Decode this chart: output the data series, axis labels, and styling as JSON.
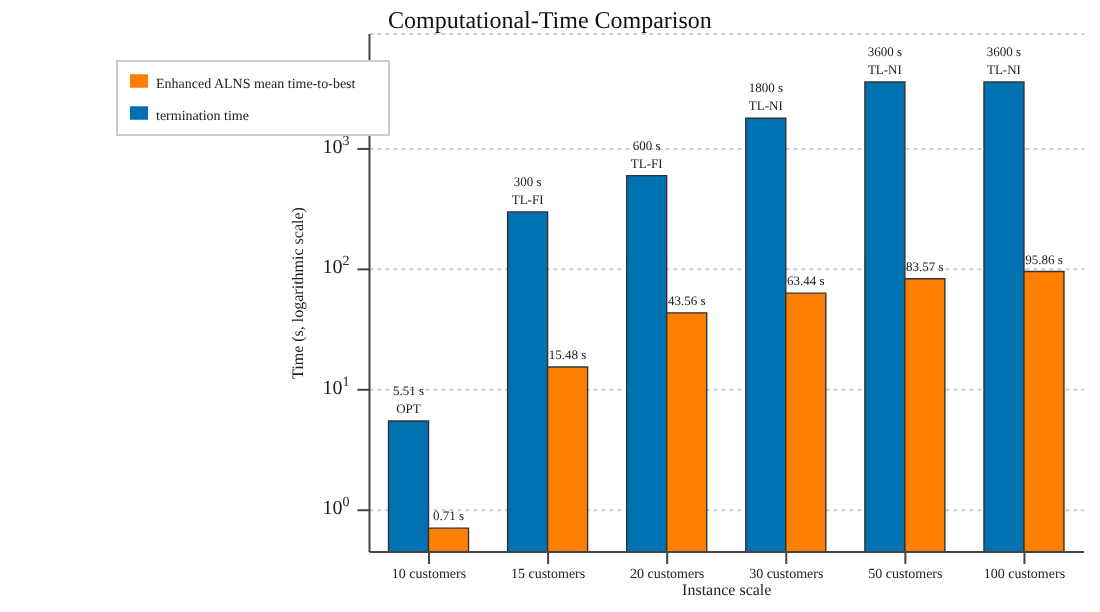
{
  "chart_data": {
    "type": "bar",
    "title": "Computational-Time Comparison",
    "xlabel": "Instance scale",
    "ylabel": "Time (s, logarithmic scale)",
    "categories": [
      "10 customers",
      "15 customers",
      "20 customers",
      "30 customers",
      "50 customers",
      "100 customers"
    ],
    "series": [
      {
        "name": "termination time",
        "color": "#0072b2",
        "values": [
          5.51,
          300,
          600,
          1800,
          3600,
          3600
        ],
        "value_labels": [
          "5.51 s\nOPT",
          "300 s\nTL-FI",
          "600 s\nTL-FI",
          "1800 s\nTL-NI",
          "3600 s\nTL-NI",
          "3600 s\nTL-NI"
        ]
      },
      {
        "name": "Enhanced ALNS mean time-to-best",
        "color": "#ff7f00",
        "values": [
          0.71,
          15.48,
          43.56,
          63.44,
          83.57,
          95.86
        ],
        "value_labels": [
          "0.71 s",
          "15.48 s",
          "43.56 s",
          "63.44 s",
          "83.57 s",
          "95.86 s"
        ]
      }
    ],
    "log": "y",
    "ylim": [
      0.45,
      9000
    ],
    "yticks": [
      {
        "value": 1,
        "label": "10$^{0}$"
      },
      {
        "value": 10,
        "label": "10$^{1}$"
      },
      {
        "value": 100,
        "label": "10$^{2}$"
      },
      {
        "value": 1000,
        "label": "10$^{3}$"
      }
    ],
    "grid": "y",
    "legend": "top left"
  }
}
